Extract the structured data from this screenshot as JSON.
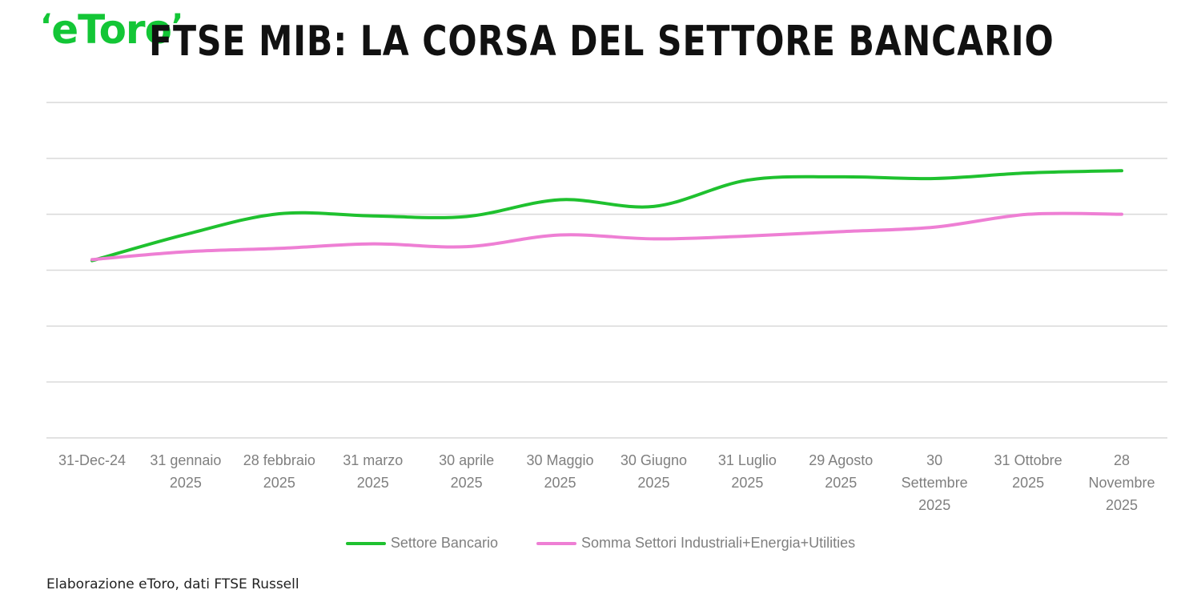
{
  "brand": {
    "logo_text": "eToro",
    "color": "#13c636"
  },
  "title": "FTSE MIB: LA CORSA DEL SETTORE BANCARIO",
  "source_note": "Elaborazione eToro, dati FTSE Russell",
  "chart_data": {
    "type": "line",
    "title": "FTSE MIB: LA CORSA DEL SETTORE BANCARIO",
    "xlabel": "",
    "ylabel": "",
    "grid": true,
    "legend_position": "bottom",
    "y_tick_labels_shown": false,
    "ylim": [
      0,
      6
    ],
    "gridline_count": 7,
    "categories": [
      [
        "31-Dec-24"
      ],
      [
        "31 gennaio",
        "2025"
      ],
      [
        "28 febbraio",
        "2025"
      ],
      [
        "31 marzo",
        "2025"
      ],
      [
        "30 aprile",
        "2025"
      ],
      [
        "30 Maggio",
        "2025"
      ],
      [
        "30 Giugno",
        "2025"
      ],
      [
        "31 Luglio",
        "2025"
      ],
      [
        "29 Agosto",
        "2025"
      ],
      [
        "30",
        "Settembre",
        "2025"
      ],
      [
        "31 Ottobre",
        "2025"
      ],
      [
        "28",
        "Novembre",
        "2025"
      ]
    ],
    "series": [
      {
        "name": "Settore Bancario",
        "color": "#1fc12f",
        "values": [
          3.17,
          3.64,
          4.01,
          3.97,
          3.96,
          4.26,
          4.14,
          4.61,
          4.67,
          4.64,
          4.74,
          4.78
        ]
      },
      {
        "name": "Somma Settori Industriali+Energia+Utilities",
        "color": "#ee7fd4",
        "values": [
          3.19,
          3.33,
          3.39,
          3.47,
          3.42,
          3.63,
          3.56,
          3.61,
          3.69,
          3.77,
          4.0,
          4.0
        ]
      }
    ]
  }
}
